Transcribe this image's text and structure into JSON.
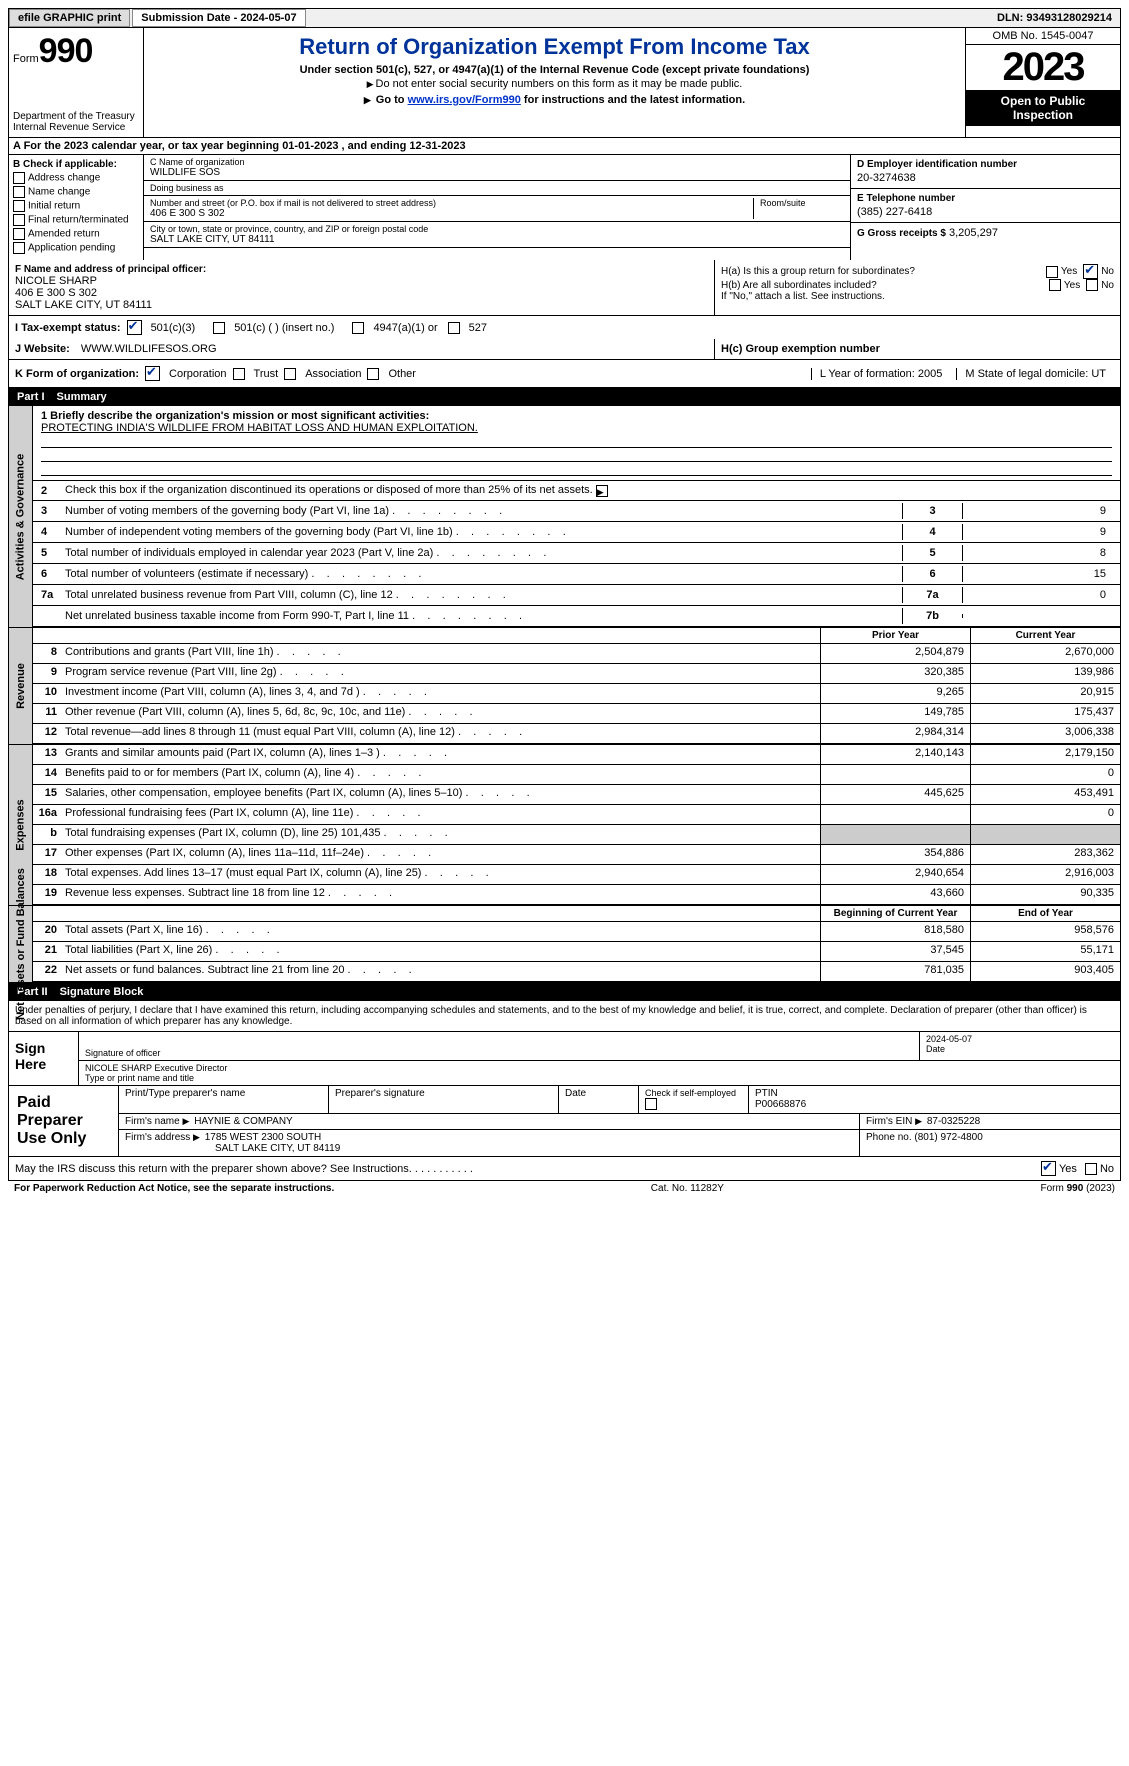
{
  "top": {
    "efile": "efile GRAPHIC print",
    "submission": "Submission Date - 2024-05-07",
    "dln": "DLN: 93493128029214"
  },
  "header": {
    "form_label": "Form",
    "form_number": "990",
    "dept": "Department of the Treasury Internal Revenue Service",
    "title": "Return of Organization Exempt From Income Tax",
    "subtitle": "Under section 501(c), 527, or 4947(a)(1) of the Internal Revenue Code (except private foundations)",
    "note": "Do not enter social security numbers on this form as it may be made public.",
    "link_note_prefix": "Go to ",
    "link_url": "www.irs.gov/Form990",
    "link_note_suffix": " for instructions and the latest information.",
    "omb": "OMB No. 1545-0047",
    "year": "2023",
    "open": "Open to Public Inspection"
  },
  "row_a": "A For the 2023 calendar year, or tax year beginning 01-01-2023    , and ending 12-31-2023",
  "col_b": {
    "label": "B Check if applicable:",
    "items": [
      "Address change",
      "Name change",
      "Initial return",
      "Final return/terminated",
      "Amended return",
      "Application pending"
    ]
  },
  "col_c": {
    "name_label": "C Name of organization",
    "name": "WILDLIFE SOS",
    "dba_label": "Doing business as",
    "dba": "",
    "street_label": "Number and street (or P.O. box if mail is not delivered to street address)",
    "room_label": "Room/suite",
    "street": "406 E 300 S 302",
    "city_label": "City or town, state or province, country, and ZIP or foreign postal code",
    "city": "SALT LAKE CITY, UT  84111"
  },
  "col_d": {
    "ein_label": "D Employer identification number",
    "ein": "20-3274638",
    "phone_label": "E Telephone number",
    "phone": "(385) 227-6418",
    "gross_label": "G Gross receipts $",
    "gross": "3,205,297"
  },
  "row_f": {
    "label": "F  Name and address of principal officer:",
    "name": "NICOLE SHARP",
    "addr1": "406 E 300 S 302",
    "addr2": "SALT LAKE CITY, UT  84111",
    "h_a": "H(a)  Is this a group return for subordinates?",
    "h_b": "H(b)  Are all subordinates included?",
    "h_note": "If \"No,\" attach a list. See instructions.",
    "yes": "Yes",
    "no": "No"
  },
  "tax_status": {
    "label": "I  Tax-exempt status:",
    "opt1": "501(c)(3)",
    "opt2": "501(c) (  ) (insert no.)",
    "opt3": "4947(a)(1) or",
    "opt4": "527"
  },
  "website": {
    "label": "J  Website:",
    "val": "WWW.WILDLIFESOS.ORG"
  },
  "hc": {
    "label": "H(c)  Group exemption number",
    "val": ""
  },
  "row_k": {
    "label": "K Form of organization:",
    "corp": "Corporation",
    "trust": "Trust",
    "assoc": "Association",
    "other": "Other",
    "l": "L Year of formation: 2005",
    "m": "M State of legal domicile: UT"
  },
  "part1": {
    "header_num": "Part I",
    "header_title": "Summary",
    "line1_label": "1  Briefly describe the organization's mission or most significant activities:",
    "line1_val": "PROTECTING INDIA'S WILDLIFE FROM HABITAT LOSS AND HUMAN EXPLOITATION.",
    "line2": "Check this box      if the organization discontinued its operations or disposed of more than 25% of its net assets.",
    "lines": [
      {
        "n": "3",
        "d": "Number of voting members of the governing body (Part VI, line 1a)",
        "bn": "3",
        "bv": "9"
      },
      {
        "n": "4",
        "d": "Number of independent voting members of the governing body (Part VI, line 1b)",
        "bn": "4",
        "bv": "9"
      },
      {
        "n": "5",
        "d": "Total number of individuals employed in calendar year 2023 (Part V, line 2a)",
        "bn": "5",
        "bv": "8"
      },
      {
        "n": "6",
        "d": "Total number of volunteers (estimate if necessary)",
        "bn": "6",
        "bv": "15"
      },
      {
        "n": "7a",
        "d": "Total unrelated business revenue from Part VIII, column (C), line 12",
        "bn": "7a",
        "bv": "0"
      },
      {
        "n": "",
        "d": "Net unrelated business taxable income from Form 990-T, Part I, line 11",
        "bn": "7b",
        "bv": ""
      }
    ],
    "side_gov": "Activities & Governance",
    "side_rev": "Revenue",
    "side_exp": "Expenses",
    "side_net": "Net Assets or Fund Balances",
    "col_prior": "Prior Year",
    "col_current": "Current Year",
    "col_boy": "Beginning of Current Year",
    "col_eoy": "End of Year",
    "rev_lines": [
      {
        "n": "8",
        "d": "Contributions and grants (Part VIII, line 1h)",
        "p": "2,504,879",
        "c": "2,670,000"
      },
      {
        "n": "9",
        "d": "Program service revenue (Part VIII, line 2g)",
        "p": "320,385",
        "c": "139,986"
      },
      {
        "n": "10",
        "d": "Investment income (Part VIII, column (A), lines 3, 4, and 7d )",
        "p": "9,265",
        "c": "20,915"
      },
      {
        "n": "11",
        "d": "Other revenue (Part VIII, column (A), lines 5, 6d, 8c, 9c, 10c, and 11e)",
        "p": "149,785",
        "c": "175,437"
      },
      {
        "n": "12",
        "d": "Total revenue—add lines 8 through 11 (must equal Part VIII, column (A), line 12)",
        "p": "2,984,314",
        "c": "3,006,338"
      }
    ],
    "exp_lines": [
      {
        "n": "13",
        "d": "Grants and similar amounts paid (Part IX, column (A), lines 1–3 )",
        "p": "2,140,143",
        "c": "2,179,150"
      },
      {
        "n": "14",
        "d": "Benefits paid to or for members (Part IX, column (A), line 4)",
        "p": "",
        "c": "0"
      },
      {
        "n": "15",
        "d": "Salaries, other compensation, employee benefits (Part IX, column (A), lines 5–10)",
        "p": "445,625",
        "c": "453,491"
      },
      {
        "n": "16a",
        "d": "Professional fundraising fees (Part IX, column (A), line 11e)",
        "p": "",
        "c": "0"
      },
      {
        "n": "b",
        "d": "Total fundraising expenses (Part IX, column (D), line 25) 101,435",
        "p": "gray",
        "c": "gray"
      },
      {
        "n": "17",
        "d": "Other expenses (Part IX, column (A), lines 11a–11d, 11f–24e)",
        "p": "354,886",
        "c": "283,362"
      },
      {
        "n": "18",
        "d": "Total expenses. Add lines 13–17 (must equal Part IX, column (A), line 25)",
        "p": "2,940,654",
        "c": "2,916,003"
      },
      {
        "n": "19",
        "d": "Revenue less expenses. Subtract line 18 from line 12",
        "p": "43,660",
        "c": "90,335"
      }
    ],
    "net_lines": [
      {
        "n": "20",
        "d": "Total assets (Part X, line 16)",
        "p": "818,580",
        "c": "958,576"
      },
      {
        "n": "21",
        "d": "Total liabilities (Part X, line 26)",
        "p": "37,545",
        "c": "55,171"
      },
      {
        "n": "22",
        "d": "Net assets or fund balances. Subtract line 21 from line 20",
        "p": "781,035",
        "c": "903,405"
      }
    ]
  },
  "part2": {
    "header_num": "Part II",
    "header_title": "Signature Block",
    "declaration": "Under penalties of perjury, I declare that I have examined this return, including accompanying schedules and statements, and to the best of my knowledge and belief, it is true, correct, and complete. Declaration of preparer (other than officer) is based on all information of which preparer has any knowledge.",
    "sign_here": "Sign Here",
    "sig_officer_label": "Signature of officer",
    "sig_date": "2024-05-07",
    "date_label": "Date",
    "officer_name": "NICOLE SHARP Executive Director",
    "type_label": "Type or print name and title",
    "paid": "Paid Preparer Use Only",
    "prep_name_label": "Print/Type preparer's name",
    "prep_sig_label": "Preparer's signature",
    "prep_date_label": "Date",
    "prep_self": "Check       if self-employed",
    "ptin_label": "PTIN",
    "ptin": "P00668876",
    "firm_name_label": "Firm's name",
    "firm_name": "HAYNIE & COMPANY",
    "firm_ein_label": "Firm's EIN",
    "firm_ein": "87-0325228",
    "firm_addr_label": "Firm's address",
    "firm_addr1": "1785 WEST 2300 SOUTH",
    "firm_addr2": "SALT LAKE CITY, UT  84119",
    "phone_label": "Phone no.",
    "phone": "(801) 972-4800",
    "discuss": "May the IRS discuss this return with the preparer shown above? See Instructions.",
    "yes": "Yes",
    "no": "No"
  },
  "footer": {
    "l": "For Paperwork Reduction Act Notice, see the separate instructions.",
    "c": "Cat. No. 11282Y",
    "r_form": "Form 990 (2023)"
  }
}
